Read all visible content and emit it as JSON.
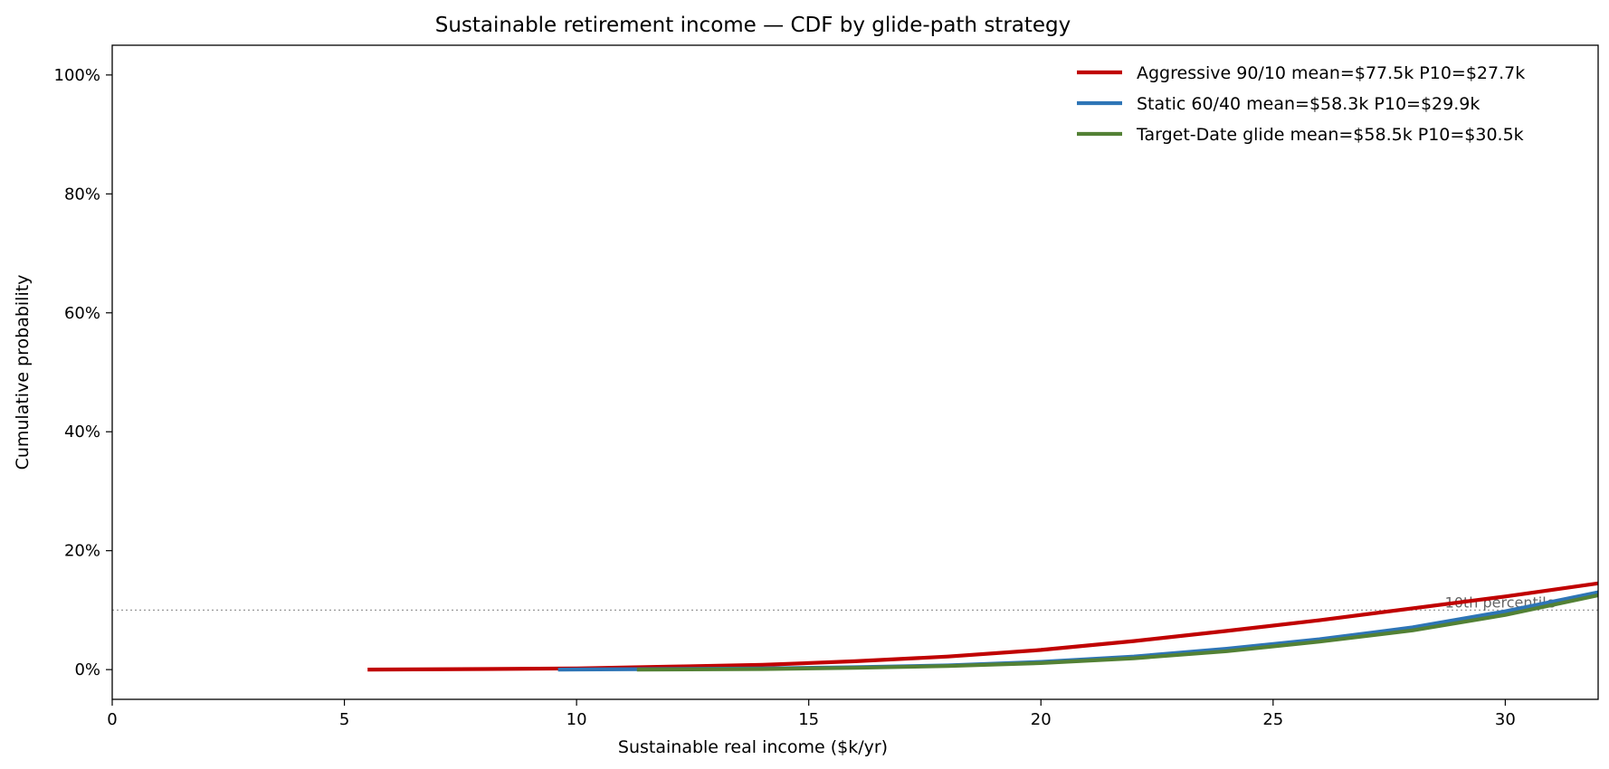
{
  "chart_data": {
    "type": "line",
    "title": "Sustainable retirement income — CDF by glide-path strategy",
    "xlabel": "Sustainable real income  ($k/yr)",
    "ylabel": "Cumulative probability",
    "xlim": [
      0,
      32
    ],
    "ylim": [
      -0.05,
      1.05
    ],
    "x_ticks": [
      0,
      5,
      10,
      15,
      20,
      25,
      30
    ],
    "x_tick_labels": [
      "0",
      "5",
      "10",
      "15",
      "20",
      "25",
      "30"
    ],
    "y_ticks": [
      0,
      0.2,
      0.4,
      0.6,
      0.8,
      1.0
    ],
    "y_tick_labels": [
      "0%",
      "20%",
      "40%",
      "60%",
      "80%",
      "100%"
    ],
    "grid": false,
    "legend_position": "top-right",
    "reference_line": {
      "y": 0.1,
      "label": "10th percentile",
      "color": "#999999"
    },
    "series": [
      {
        "name": "Aggressive 90/10   mean=$77.5k   P10=$27.7k",
        "color": "#c00000",
        "x": [
          5.5,
          8,
          10,
          12,
          14,
          16,
          18,
          20,
          22,
          24,
          26,
          28,
          30,
          32
        ],
        "y": [
          0.0,
          0.001,
          0.002,
          0.005,
          0.008,
          0.014,
          0.022,
          0.033,
          0.048,
          0.065,
          0.083,
          0.103,
          0.123,
          0.145
        ]
      },
      {
        "name": "Static 60/40   mean=$58.3k   P10=$29.9k",
        "color": "#2e75b6",
        "x": [
          9.6,
          12,
          14,
          16,
          18,
          20,
          22,
          24,
          26,
          28,
          30,
          32
        ],
        "y": [
          0.0,
          0.001,
          0.002,
          0.004,
          0.007,
          0.013,
          0.022,
          0.035,
          0.051,
          0.071,
          0.098,
          0.13
        ]
      },
      {
        "name": "Target-Date glide   mean=$58.5k   P10=$30.5k",
        "color": "#538135",
        "x": [
          11.3,
          14,
          16,
          18,
          20,
          22,
          24,
          26,
          28,
          30,
          32
        ],
        "y": [
          0.0,
          0.001,
          0.003,
          0.006,
          0.011,
          0.019,
          0.031,
          0.047,
          0.066,
          0.092,
          0.125
        ]
      }
    ]
  }
}
